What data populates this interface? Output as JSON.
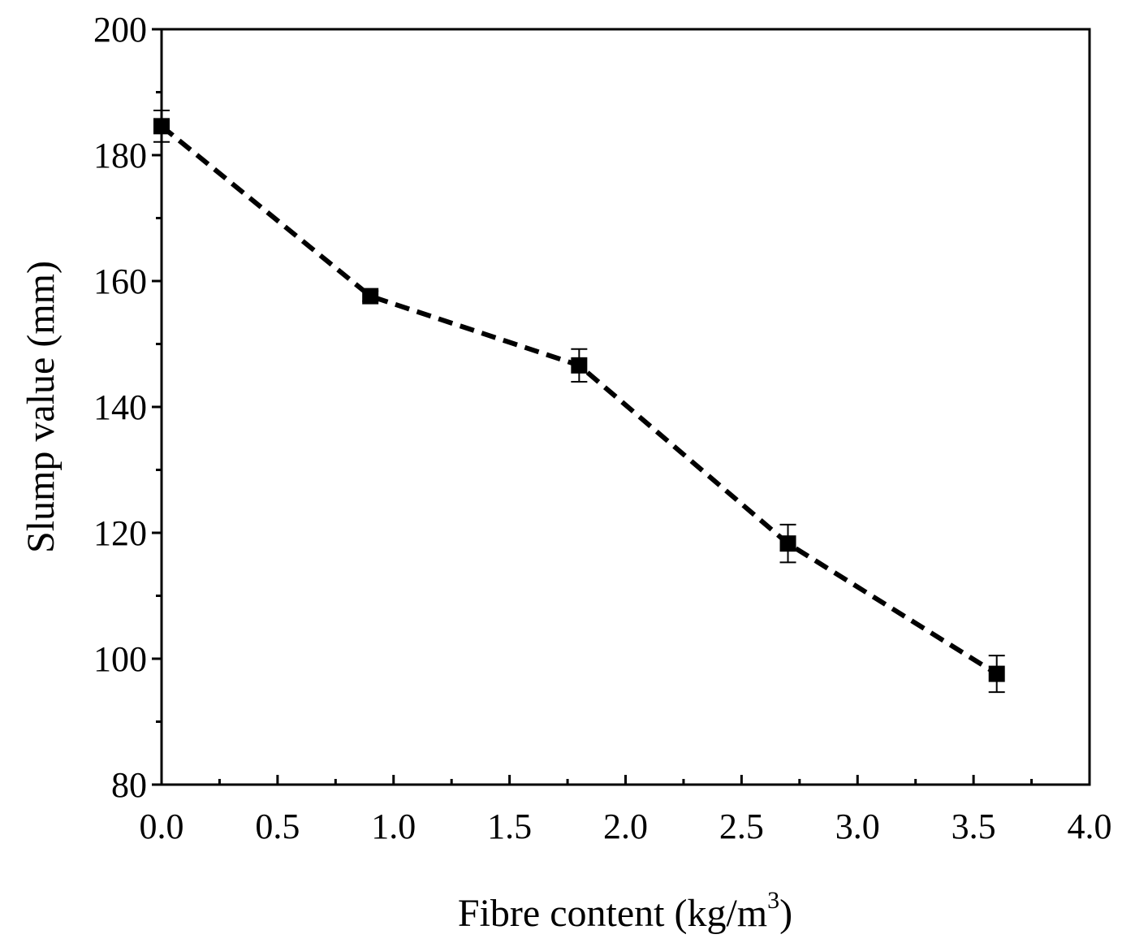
{
  "chart_data": {
    "type": "line",
    "title": "",
    "xlabel": "Fibre content (kg/m",
    "xlabel_sup": "3",
    "xlabel_end": ")",
    "ylabel": "Slump value (mm)",
    "xlim": [
      0.0,
      4.0
    ],
    "ylim": [
      80,
      200
    ],
    "x_ticks": [
      "0.0",
      "0.5",
      "1.0",
      "1.5",
      "2.0",
      "2.5",
      "3.0",
      "3.5",
      "4.0"
    ],
    "y_ticks": [
      "80",
      "100",
      "120",
      "140",
      "160",
      "180",
      "200"
    ],
    "grid": false,
    "legend": "none",
    "line_style": "dashed",
    "marker": "square",
    "color": "#000000",
    "series": [
      {
        "x": [
          0.0,
          0.9,
          1.8,
          2.7,
          3.6
        ],
        "values": [
          184.6,
          157.6,
          146.6,
          118.3,
          97.6
        ],
        "error": [
          2.5,
          0.8,
          2.6,
          3.0,
          2.9
        ]
      }
    ]
  }
}
